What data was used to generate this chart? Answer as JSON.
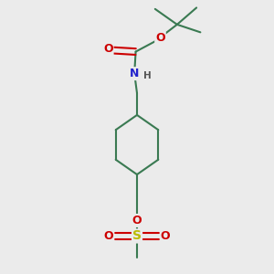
{
  "background_color": "#ebebeb",
  "bond_color": "#3a7a52",
  "oxygen_color": "#cc0000",
  "nitrogen_color": "#2222cc",
  "sulfur_color": "#bbbb00",
  "line_width": 1.5,
  "figsize": [
    3.0,
    3.0
  ],
  "dpi": 100,
  "xlim": [
    -0.38,
    0.38
  ],
  "ylim": [
    -0.52,
    0.52
  ]
}
